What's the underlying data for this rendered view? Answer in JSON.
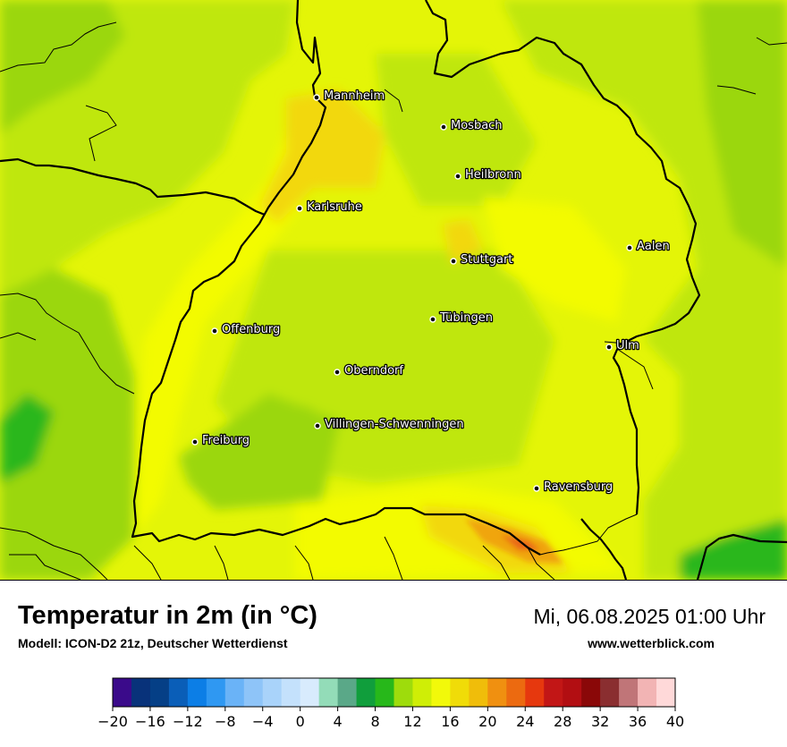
{
  "title": "Temperatur in 2m (in °C)",
  "model": "Modell: ICON-D2 21z, Deutscher Wetterdienst",
  "datetime": "Mi, 06.08.2025 01:00 Uhr",
  "site": "www.wetterblick.com",
  "cities": [
    {
      "name": "Mannheim"
    },
    {
      "name": "Mosbach"
    },
    {
      "name": "Heilbronn"
    },
    {
      "name": "Karlsruhe"
    },
    {
      "name": "Aalen"
    },
    {
      "name": "Stuttgart"
    },
    {
      "name": "Tübingen"
    },
    {
      "name": "Offenburg"
    },
    {
      "name": "Ulm"
    },
    {
      "name": "Oberndorf"
    },
    {
      "name": "Villingen-Schwenningen"
    },
    {
      "name": "Freiburg"
    },
    {
      "name": "Ravensburg"
    }
  ],
  "legend": {
    "unit": "°C",
    "min": -20,
    "max": 40,
    "step": 2,
    "colors": [
      "#3a0a8a",
      "#08327a",
      "#053f86",
      "#0a5eb8",
      "#0c7ee6",
      "#2f98f2",
      "#6ab3f7",
      "#8ec4f8",
      "#a9d3fa",
      "#c4e1fc",
      "#d8ebfd",
      "#93dcb8",
      "#5aa888",
      "#109e3c",
      "#27b81a",
      "#9edc0c",
      "#cfee06",
      "#f2f90a",
      "#f0dc08",
      "#f0bd0a",
      "#f09010",
      "#ec6a10",
      "#e6380e",
      "#c21616",
      "#b20e12",
      "#8a0808",
      "#8a2e30",
      "#c07578",
      "#f2b4b4",
      "#ffd9d9"
    ],
    "tick_labels": [
      "−20",
      "−16",
      "−12",
      "−8",
      "−4",
      "0",
      "4",
      "8",
      "12",
      "16",
      "20",
      "24",
      "28",
      "32",
      "36",
      "40"
    ]
  },
  "map_colors": {
    "base": "#e4f507",
    "yellow": "#f3fb05",
    "lime": "#bfe70e",
    "green_light": "#9bd70f",
    "green": "#2cb71c",
    "gold": "#f2d80c",
    "orange": "#f0a50e",
    "red_orange": "#ea6812",
    "border": "#000000"
  }
}
